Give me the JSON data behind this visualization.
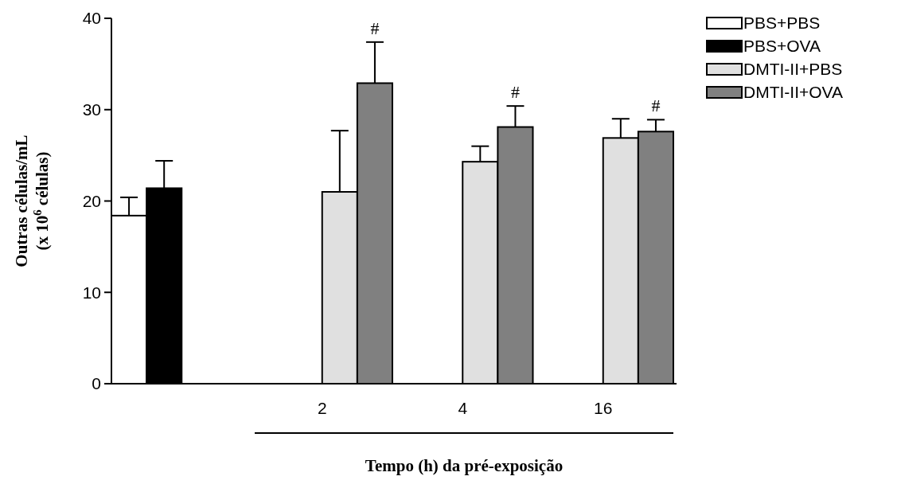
{
  "chart_data": {
    "type": "bar",
    "xlabel": "Tempo (h) da pré-exposição",
    "ylabel": "Outras células/mL\n(x 10$^{6}$ células)",
    "categories": [
      null,
      "2",
      "4",
      "16"
    ],
    "series": [
      {
        "name": "PBS+PBS",
        "color": "#ffffff",
        "values": [
          18.4,
          null,
          null,
          null
        ],
        "errors": [
          [
            18.4,
            20.4
          ],
          null,
          null,
          null
        ]
      },
      {
        "name": "PBS+OVA",
        "color": "#000000",
        "values": [
          21.4,
          null,
          null,
          null
        ],
        "errors": [
          [
            21.4,
            24.4
          ],
          null,
          null,
          null
        ]
      },
      {
        "name": "DMTI-II+PBS",
        "color": "#e0e0e0",
        "values": [
          0,
          21.0,
          24.3,
          26.9
        ],
        "errors": [
          null,
          [
            21.0,
            27.7
          ],
          [
            24.3,
            26.0
          ],
          [
            26.9,
            29.0
          ]
        ]
      },
      {
        "name": "DMTI-II+OVA",
        "color": "#808080",
        "values": [
          0,
          32.9,
          28.1,
          27.6
        ],
        "errors": [
          null,
          [
            32.9,
            37.4
          ],
          [
            28.1,
            30.4
          ],
          [
            27.6,
            28.9
          ]
        ]
      }
    ],
    "annotations": [
      "#",
      "#",
      "#"
    ],
    "ylim": [
      0,
      40
    ],
    "yticks": [
      0,
      10,
      20,
      30,
      40
    ],
    "grid": false,
    "legend": "top right"
  }
}
